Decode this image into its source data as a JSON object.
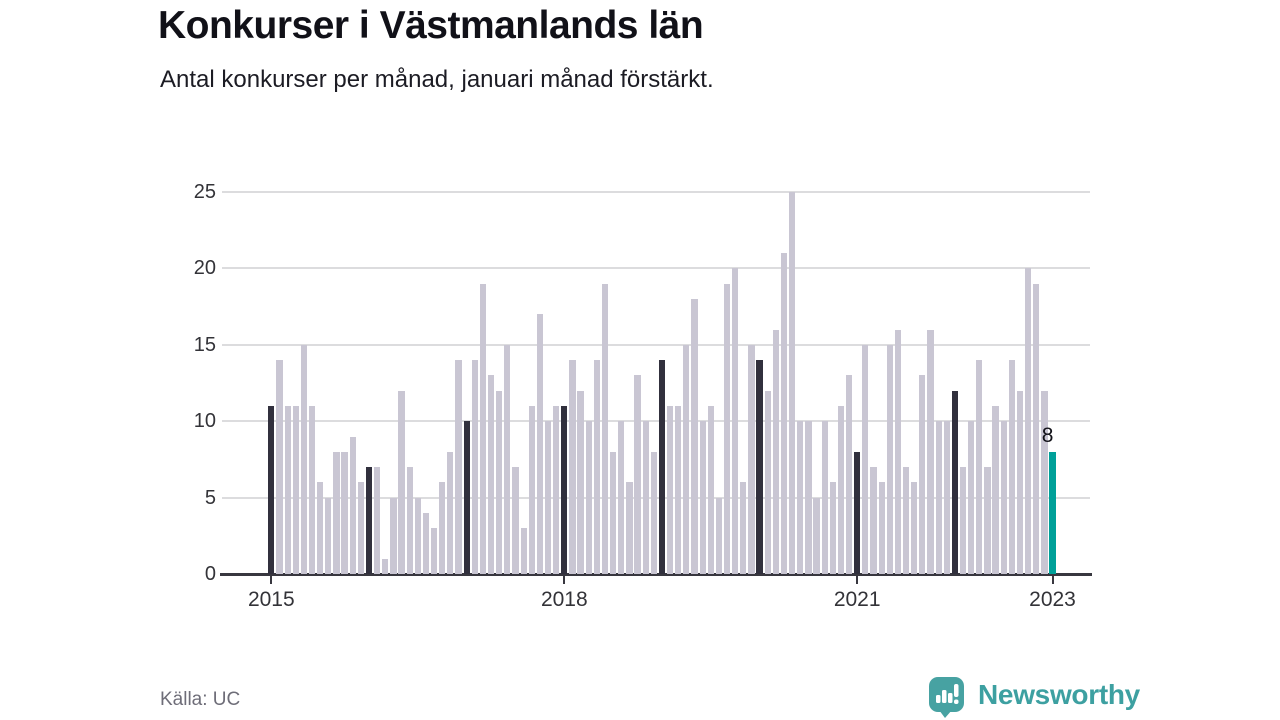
{
  "header": {
    "title": "Konkurser i Västmanlands län",
    "subtitle": "Antal konkurser per månad, januari månad förstärkt."
  },
  "chart_data": {
    "type": "bar",
    "title": "Konkurser i Västmanlands län",
    "subtitle": "Antal konkurser per månad, januari månad förstärkt.",
    "x_start": "2015-01",
    "x_end": "2023-01",
    "ylim": [
      0,
      25
    ],
    "y_ticks": [
      0,
      5,
      10,
      15,
      20,
      25
    ],
    "grid": "horizontal",
    "legend": "none",
    "highlight_rule": "january bars darkened, latest bar teal",
    "x_ticks": [
      {
        "label": "2015",
        "month_index": 0
      },
      {
        "label": "2018",
        "month_index": 36
      },
      {
        "label": "2021",
        "month_index": 72
      },
      {
        "label": "2023",
        "month_index": 96
      }
    ],
    "series": [
      {
        "year": 2015,
        "values": [
          11,
          14,
          11,
          11,
          15,
          11,
          6,
          5,
          8,
          8,
          9,
          6
        ]
      },
      {
        "year": 2016,
        "values": [
          7,
          7,
          1,
          5,
          12,
          7,
          5,
          4,
          3,
          6,
          8,
          14
        ]
      },
      {
        "year": 2017,
        "values": [
          10,
          14,
          19,
          13,
          12,
          15,
          7,
          3,
          11,
          17,
          10,
          11
        ]
      },
      {
        "year": 2018,
        "values": [
          11,
          14,
          12,
          10,
          14,
          19,
          8,
          10,
          6,
          13,
          10,
          8
        ]
      },
      {
        "year": 2019,
        "values": [
          14,
          11,
          11,
          15,
          18,
          10,
          11,
          5,
          19,
          20,
          6,
          15
        ]
      },
      {
        "year": 2020,
        "values": [
          14,
          12,
          16,
          21,
          25,
          10,
          10,
          5,
          10,
          6,
          11,
          13
        ]
      },
      {
        "year": 2021,
        "values": [
          8,
          15,
          7,
          6,
          15,
          16,
          7,
          6,
          13,
          16,
          10,
          10
        ]
      },
      {
        "year": 2022,
        "values": [
          12,
          7,
          10,
          14,
          7,
          11,
          10,
          14,
          12,
          20,
          19,
          12
        ]
      },
      {
        "year": 2023,
        "values": [
          8
        ]
      }
    ],
    "last_point": {
      "month": "2023-01",
      "value": 8,
      "label": "8"
    },
    "colors": {
      "bar": "#c9c6d3",
      "january_bar": "#31303d",
      "latest_bar": "#00a099",
      "gridline": "#dcdcde",
      "axis": "#38373f",
      "logo_teal": "#3da0a1"
    }
  },
  "footer": {
    "source": "Källa: UC",
    "brand": "Newsworthy"
  }
}
